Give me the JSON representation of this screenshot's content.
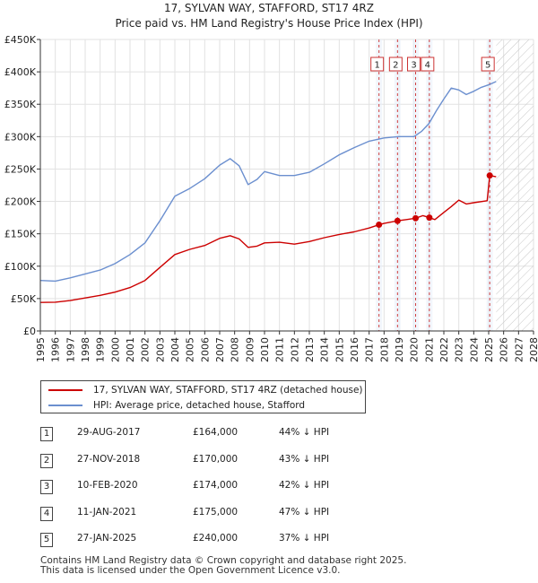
{
  "chart_data": {
    "type": "line",
    "title": "17, SYLVAN WAY, STAFFORD, ST17 4RZ",
    "subtitle": "Price paid vs. HM Land Registry's House Price Index (HPI)",
    "xlim": [
      1995,
      2028
    ],
    "ylim": [
      0,
      450000
    ],
    "x_ticks": [
      "1995",
      "1996",
      "1997",
      "1998",
      "1999",
      "2000",
      "2001",
      "2002",
      "2003",
      "2004",
      "2005",
      "2006",
      "2007",
      "2008",
      "2009",
      "2010",
      "2011",
      "2012",
      "2013",
      "2014",
      "2015",
      "2016",
      "2017",
      "2018",
      "2019",
      "2020",
      "2021",
      "2022",
      "2023",
      "2024",
      "2025",
      "2026",
      "2027",
      "2028"
    ],
    "y_ticks": [
      {
        "value": 0,
        "label": "£0"
      },
      {
        "value": 50000,
        "label": "£50K"
      },
      {
        "value": 100000,
        "label": "£100K"
      },
      {
        "value": 150000,
        "label": "£150K"
      },
      {
        "value": 200000,
        "label": "£200K"
      },
      {
        "value": 250000,
        "label": "£250K"
      },
      {
        "value": 300000,
        "label": "£300K"
      },
      {
        "value": 350000,
        "label": "£350K"
      },
      {
        "value": 400000,
        "label": "£400K"
      },
      {
        "value": 450000,
        "label": "£450K"
      }
    ],
    "forecast_start": 2025.5,
    "series": [
      {
        "name": "17, SYLVAN WAY, STAFFORD, ST17 4RZ (detached house)",
        "color": "#cc0000",
        "points": [
          [
            1995,
            44000
          ],
          [
            1996,
            44500
          ],
          [
            1997,
            47000
          ],
          [
            1998,
            51000
          ],
          [
            1999,
            55000
          ],
          [
            2000,
            60000
          ],
          [
            2001,
            67000
          ],
          [
            2002,
            78000
          ],
          [
            2003,
            98000
          ],
          [
            2004,
            118000
          ],
          [
            2005,
            126000
          ],
          [
            2006,
            132000
          ],
          [
            2007,
            143000
          ],
          [
            2007.7,
            147000
          ],
          [
            2008.3,
            142000
          ],
          [
            2008.9,
            129000
          ],
          [
            2009.5,
            131000
          ],
          [
            2010,
            136000
          ],
          [
            2011,
            137000
          ],
          [
            2012,
            134000
          ],
          [
            2013,
            138000
          ],
          [
            2014,
            144000
          ],
          [
            2015,
            149000
          ],
          [
            2016,
            153000
          ],
          [
            2017,
            159000
          ],
          [
            2017.66,
            164000
          ],
          [
            2018,
            166000
          ],
          [
            2018.9,
            170000
          ],
          [
            2019.5,
            172000
          ],
          [
            2020.11,
            174000
          ],
          [
            2020.6,
            178000
          ],
          [
            2021.03,
            175000
          ],
          [
            2021.4,
            172000
          ],
          [
            2022,
            183000
          ],
          [
            2022.5,
            192000
          ],
          [
            2023,
            202000
          ],
          [
            2023.5,
            196000
          ],
          [
            2024,
            198000
          ],
          [
            2024.9,
            201000
          ],
          [
            2025.07,
            240000
          ],
          [
            2025.5,
            238000
          ]
        ]
      },
      {
        "name": "HPI: Average price, detached house, Stafford",
        "color": "#6b8fcf",
        "points": [
          [
            1995,
            78000
          ],
          [
            1996,
            77000
          ],
          [
            1997,
            82000
          ],
          [
            1998,
            88000
          ],
          [
            1999,
            94000
          ],
          [
            2000,
            104000
          ],
          [
            2001,
            118000
          ],
          [
            2002,
            136000
          ],
          [
            2003,
            170000
          ],
          [
            2004,
            208000
          ],
          [
            2005,
            220000
          ],
          [
            2006,
            235000
          ],
          [
            2007,
            256000
          ],
          [
            2007.7,
            266000
          ],
          [
            2008.3,
            255000
          ],
          [
            2008.9,
            226000
          ],
          [
            2009.5,
            234000
          ],
          [
            2010,
            246000
          ],
          [
            2011,
            240000
          ],
          [
            2012,
            240000
          ],
          [
            2013,
            245000
          ],
          [
            2014,
            258000
          ],
          [
            2015,
            272000
          ],
          [
            2016,
            283000
          ],
          [
            2017,
            293000
          ],
          [
            2018,
            298000
          ],
          [
            2019,
            300000
          ],
          [
            2020,
            300000
          ],
          [
            2020.5,
            308000
          ],
          [
            2021,
            320000
          ],
          [
            2021.5,
            340000
          ],
          [
            2022,
            358000
          ],
          [
            2022.5,
            375000
          ],
          [
            2023,
            372000
          ],
          [
            2023.5,
            365000
          ],
          [
            2024,
            370000
          ],
          [
            2024.5,
            376000
          ],
          [
            2025,
            380000
          ],
          [
            2025.5,
            385000
          ]
        ]
      }
    ],
    "transactions": [
      {
        "id": "1",
        "year": 2017.66,
        "price": 164000,
        "date": "29-AUG-2017",
        "price_label": "£164,000",
        "hpi_diff": "44% ↓ HPI"
      },
      {
        "id": "2",
        "year": 2018.9,
        "price": 170000,
        "date": "27-NOV-2018",
        "price_label": "£170,000",
        "hpi_diff": "43% ↓ HPI"
      },
      {
        "id": "3",
        "year": 2020.11,
        "price": 174000,
        "date": "10-FEB-2020",
        "price_label": "£174,000",
        "hpi_diff": "42% ↓ HPI"
      },
      {
        "id": "4",
        "year": 2021.03,
        "price": 175000,
        "date": "11-JAN-2021",
        "price_label": "£175,000",
        "hpi_diff": "47% ↓ HPI"
      },
      {
        "id": "5",
        "year": 2025.07,
        "price": 240000,
        "date": "27-JAN-2025",
        "price_label": "£240,000",
        "hpi_diff": "37% ↓ HPI"
      }
    ]
  },
  "legend": {
    "property_label": "17, SYLVAN WAY, STAFFORD, ST17 4RZ (detached house)",
    "hpi_label": "HPI: Average price, detached house, Stafford"
  },
  "footer": {
    "line1": "Contains HM Land Registry data © Crown copyright and database right 2025.",
    "line2": "This data is licensed under the Open Government Licence v3.0."
  }
}
